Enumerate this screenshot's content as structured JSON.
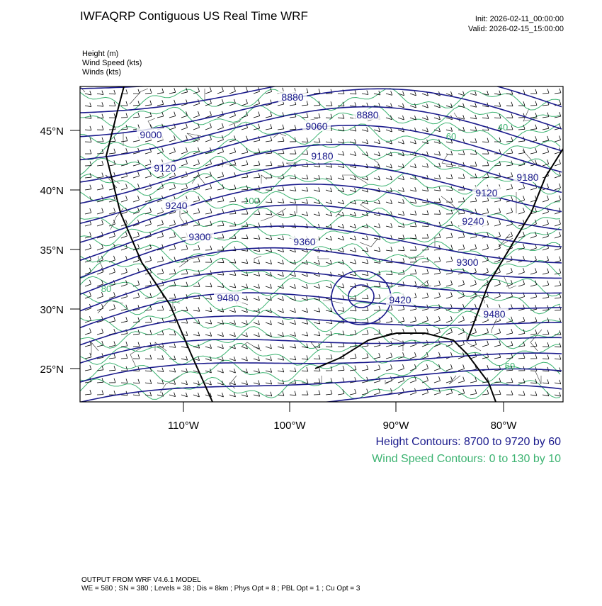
{
  "header": {
    "title": "IWFAQRP Contiguous US Real Time WRF",
    "init": "Init: 2026-02-11_00:00:00",
    "valid": "Valid: 2026-02-15_15:00:00"
  },
  "fields": [
    "Height   (m)",
    "Wind Speed   (kts)",
    "Winds   (kts)"
  ],
  "map": {
    "lat_labels": [
      "45°N",
      "40°N",
      "35°N",
      "30°N",
      "25°N"
    ],
    "lon_labels": [
      "110°W",
      "100°W",
      "90°W",
      "80°W"
    ],
    "height_labels": [
      "8880",
      "8880",
      "9000",
      "9060",
      "9120",
      "9180",
      "9240",
      "9300",
      "9360",
      "9480",
      "9420",
      "9180",
      "9120",
      "9240",
      "9300",
      "9480"
    ],
    "speed_labels": [
      "60",
      "100",
      "80",
      "60",
      "40"
    ]
  },
  "contour_info": {
    "height": "Height Contours: 8700 to 9720 by 60",
    "speed": "Wind Speed Contours: 0 to 130 by 10"
  },
  "footer": {
    "model": "OUTPUT FROM WRF V4.6.1 MODEL",
    "params": "WE = 580 ; SN = 380 ; Levels = 38 ; Dis = 8km ; Phys Opt = 8 ; PBL Opt = 1 ; Cu Opt = 3"
  }
}
